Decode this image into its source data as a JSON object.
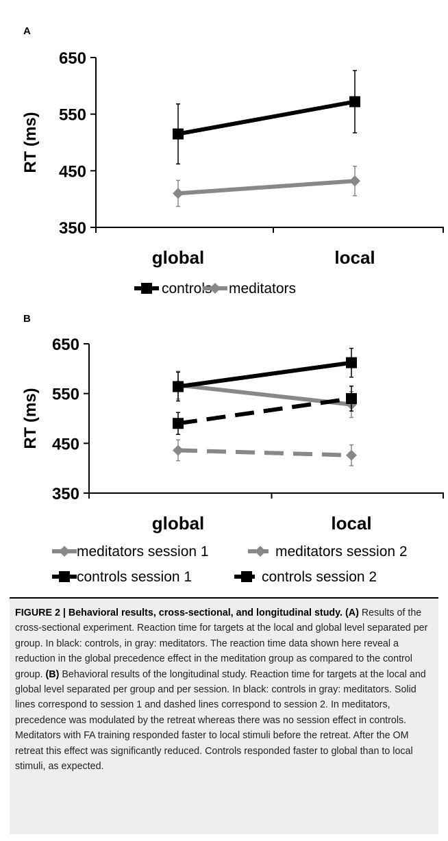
{
  "chart_data": [
    {
      "type": "line",
      "panel": "A",
      "ylabel": "RT (ms)",
      "ylim": [
        350,
        650
      ],
      "yticks": [
        "650",
        "550",
        "450",
        "350"
      ],
      "categories": [
        "global",
        "local"
      ],
      "series": [
        {
          "name": "controls",
          "color": "#000000",
          "marker": "square",
          "dash": "solid",
          "values": [
            515,
            572
          ],
          "errors": [
            53,
            55
          ]
        },
        {
          "name": "meditators",
          "color": "#888888",
          "marker": "diamond",
          "dash": "solid",
          "values": [
            410,
            432
          ],
          "errors": [
            23,
            26
          ]
        }
      ],
      "legend": "bottom"
    },
    {
      "type": "line",
      "panel": "B",
      "ylabel": "RT (ms)",
      "ylim": [
        350,
        650
      ],
      "yticks": [
        "650",
        "550",
        "450",
        "350"
      ],
      "categories": [
        "global",
        "local"
      ],
      "series": [
        {
          "name": "meditators session 1",
          "color": "#888888",
          "marker": "diamond",
          "dash": "solid",
          "values": [
            567,
            528
          ],
          "errors": [
            28,
            26
          ]
        },
        {
          "name": "meditators session 2",
          "color": "#888888",
          "marker": "diamond",
          "dash": "dashed",
          "values": [
            436,
            426
          ],
          "errors": [
            21,
            21
          ]
        },
        {
          "name": "controls session 1",
          "color": "#000000",
          "marker": "square",
          "dash": "solid",
          "values": [
            564,
            612
          ],
          "errors": [
            29,
            29
          ]
        },
        {
          "name": "controls session 2",
          "color": "#000000",
          "marker": "square",
          "dash": "dashed",
          "values": [
            490,
            540
          ],
          "errors": [
            22,
            25
          ]
        }
      ],
      "legend": "bottom"
    }
  ],
  "caption": {
    "title": "FIGURE 2 | Behavioral results, cross-sectional, and longitudinal study.",
    "label_a": "(A)",
    "text_a": " Results of the cross-sectional experiment. Reaction time for targets at the local and global level separated per group. In black: controls, in gray: meditators. The reaction time data shown here reveal a reduction in the global precedence effect in the meditation group as compared to the control group. ",
    "label_b": "(B)",
    "text_b": " Behavioral results of the longitudinal study. Reaction time for targets at the local and global level separated per group and per session. In black: controls in gray: meditators. Solid lines correspond to session 1 and dashed lines correspond to session 2. In meditators, precedence was modulated by the retreat whereas there was no session effect in controls. Meditators with FA training responded faster to local stimuli before the retreat. After the OM retreat this effect was significantly reduced. Controls responded faster to global than to local stimuli, as expected."
  }
}
